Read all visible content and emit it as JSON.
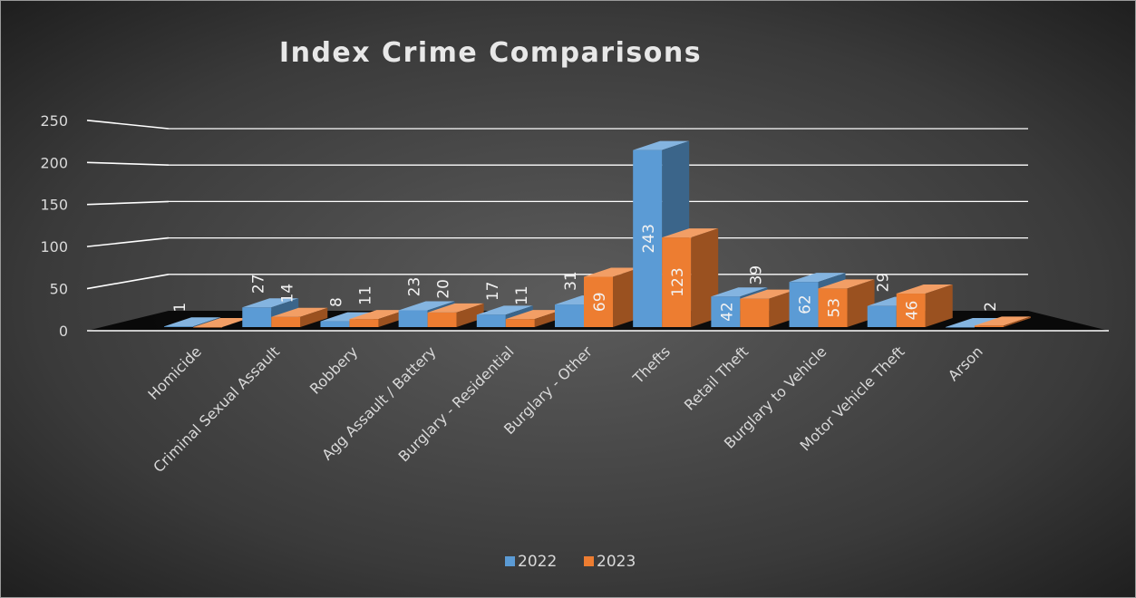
{
  "chart_data": {
    "type": "bar",
    "title": "Index Crime Comparisons",
    "categories": [
      "Homicide",
      "Criminal Sexual Assault",
      "Robbery",
      "Agg Assault / Battery",
      "Burglary - Residential",
      "Burglary - Other",
      "Thefts",
      "Retail Theft",
      "Burglary to Vehicle",
      "Motor Vehicle Theft",
      "Arson"
    ],
    "series": [
      {
        "name": "2022",
        "color": "#5b9bd5",
        "values": [
          1,
          27,
          8,
          23,
          17,
          31,
          243,
          42,
          62,
          29,
          0
        ]
      },
      {
        "name": "2023",
        "color": "#ed7d31",
        "values": [
          0,
          14,
          11,
          20,
          11,
          69,
          123,
          39,
          53,
          46,
          2
        ]
      }
    ],
    "data_labels": [
      [
        "1",
        "27",
        "8",
        "23",
        "17",
        "31",
        "243",
        "42",
        "62",
        "29",
        ""
      ],
      [
        "",
        "14",
        "11",
        "20",
        "11",
        "69",
        "123",
        "39",
        "53",
        "46",
        "2"
      ]
    ],
    "ylim": [
      0,
      250
    ],
    "yticks": [
      0,
      50,
      100,
      150,
      200,
      250
    ],
    "ytick_labels": [
      "0",
      "50",
      "100",
      "150",
      "200",
      "250"
    ],
    "xlabel": "",
    "ylabel": "",
    "grid": true,
    "legend_position": "bottom",
    "style": "3d-clustered-column",
    "background": "dark radial gradient",
    "colors": {
      "grid": "#ffffff",
      "text": "#d9d9d9",
      "title": "#e8e8e8",
      "floor": "#000000"
    }
  }
}
